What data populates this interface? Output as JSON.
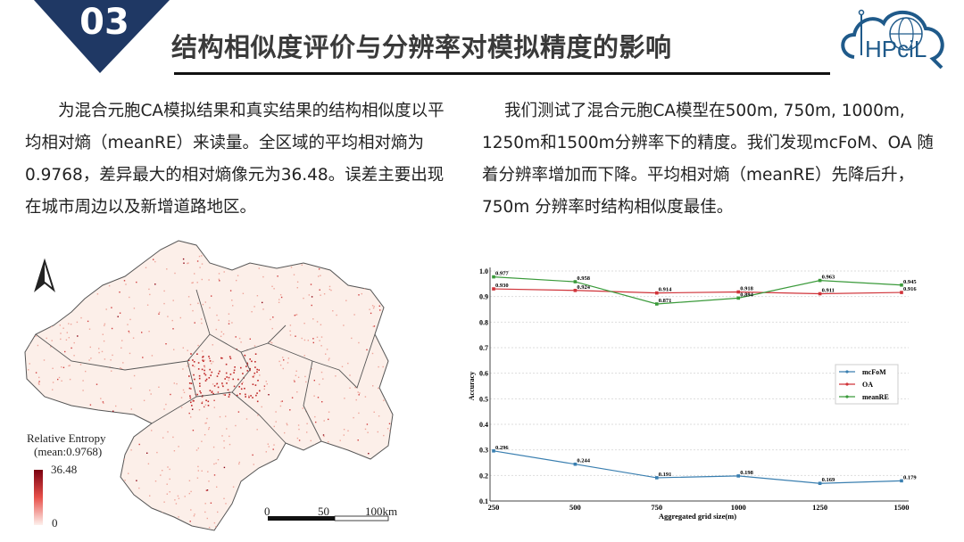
{
  "header": {
    "section_number": "03",
    "title": "结构相似度评价与分辨率对模拟精度的影响",
    "banner_color": "#1f3864",
    "logo_text": "HPciL"
  },
  "left_paragraph": "为混合元胞CA模拟结果和真实结果的结构相似度以平均相对熵（meanRE）来读量。全区域的平均相对熵为0.9768，差异最大的相对熵像元为36.48。误差主要出现在城市周边以及新增道路地区。",
  "right_paragraph": "我们测试了混合元胞CA模型在500m, 750m, 1000m, 1250m和1500m分辨率下的精度。我们发现mcFoM、OA  随着分辨率增加而下降。平均相对熵（meanRE）先降后升， 750m 分辨率时结构相似度最佳。",
  "map": {
    "legend_title": "Relative Entropy",
    "legend_subtitle": "(mean:0.9768)",
    "legend_max": "36.48",
    "legend_min": "0",
    "scale_labels": [
      "0",
      "50",
      "100km"
    ],
    "north_arrow": "north-arrow-icon",
    "colors": {
      "low": "#fdf0ec",
      "high": "#7a0010"
    }
  },
  "chart_data": {
    "type": "line",
    "x": [
      250,
      500,
      750,
      1000,
      1250,
      1500
    ],
    "xlabel": "Aggregated grid size(m)",
    "ylabel": "Accuracy",
    "ylim": [
      0.1,
      1.0
    ],
    "yticks": [
      "0.1",
      "0.2",
      "0.3",
      "0.4",
      "0.5",
      "0.6",
      "0.7",
      "0.8",
      "0.9",
      "1.0"
    ],
    "grid": true,
    "legend_position": "center-right",
    "series": [
      {
        "name": "mcFoM",
        "color": "#3a7fb0",
        "values": [
          0.296,
          0.244,
          0.191,
          0.198,
          0.169,
          0.179
        ],
        "labels": [
          "0.296",
          "0.244",
          "0.191",
          "0.198",
          "0.169",
          "0.179"
        ]
      },
      {
        "name": "OA",
        "color": "#d0343a",
        "values": [
          0.93,
          0.924,
          0.914,
          0.918,
          0.911,
          0.916
        ],
        "labels": [
          "0.930",
          "0.924",
          "0.914",
          "0.918",
          "0.911",
          "0.916"
        ]
      },
      {
        "name": "meanRE",
        "color": "#3a9a3a",
        "values": [
          0.977,
          0.958,
          0.871,
          0.894,
          0.963,
          0.945
        ],
        "labels": [
          "0.977",
          "0.958",
          "0.871",
          "0.894",
          "0.963",
          "0.945"
        ]
      }
    ]
  }
}
